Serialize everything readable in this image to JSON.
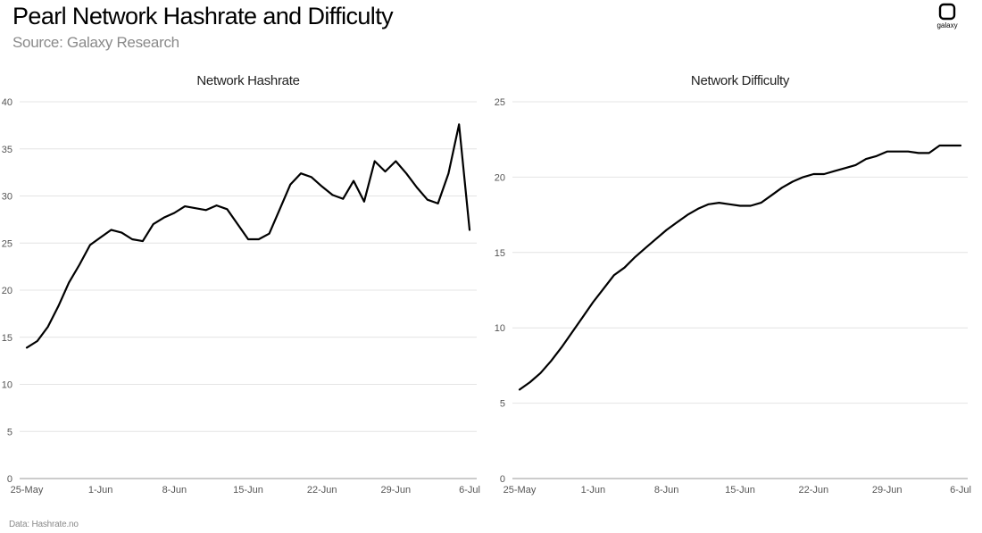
{
  "header": {
    "title": "Pearl Network Hashrate and Difficulty",
    "subtitle": "Source: Galaxy Research",
    "logo_text": "galaxy"
  },
  "footer": {
    "note": "Data: Hashrate.no"
  },
  "chart_data": [
    {
      "type": "line",
      "title": "Network Hashrate",
      "xlabel": "",
      "ylabel": "",
      "x_ticks": [
        "25-May",
        "1-Jun",
        "8-Jun",
        "15-Jun",
        "22-Jun",
        "29-Jun",
        "6-Jul"
      ],
      "y_ticks": [
        0,
        5,
        10,
        15,
        20,
        25,
        30,
        35,
        40
      ],
      "ylim": [
        0,
        40
      ],
      "x_range_days": [
        0,
        42
      ],
      "grid": "horizontal",
      "line_color": "#000000",
      "series": [
        {
          "x": [
            0,
            1,
            2,
            3,
            4,
            5,
            6,
            7,
            8,
            9,
            10,
            11,
            12,
            13,
            14,
            15,
            16,
            17,
            18,
            19,
            20,
            21,
            22,
            23,
            24,
            25,
            26,
            27,
            28,
            29,
            30,
            31,
            32,
            33,
            34,
            35,
            36,
            37,
            38,
            39,
            40,
            41
          ],
          "y": [
            13.9,
            14.6,
            16.1,
            18.3,
            20.8,
            22.7,
            24.8,
            25.6,
            26.4,
            26.1,
            25.4,
            25.2,
            27.0,
            27.7,
            28.2,
            28.9,
            28.7,
            28.5,
            29.0,
            28.6,
            27.0,
            25.4,
            25.4,
            26.0,
            28.6,
            31.2,
            32.4,
            32.0,
            31.0,
            30.1,
            29.7,
            31.6,
            29.4,
            33.7,
            32.6,
            33.7,
            32.4,
            30.9,
            29.6,
            29.2,
            32.4,
            37.6
          ]
        }
      ],
      "last_point": {
        "x": 42,
        "y": 26.4
      }
    },
    {
      "type": "line",
      "title": "Network Difficulty",
      "xlabel": "",
      "ylabel": "",
      "x_ticks": [
        "25-May",
        "1-Jun",
        "8-Jun",
        "15-Jun",
        "22-Jun",
        "29-Jun",
        "6-Jul"
      ],
      "y_ticks": [
        0,
        5,
        10,
        15,
        20,
        25
      ],
      "ylim": [
        0,
        25
      ],
      "x_range_days": [
        0,
        42
      ],
      "grid": "horizontal",
      "line_color": "#000000",
      "series": [
        {
          "x": [
            0,
            1,
            2,
            3,
            4,
            5,
            6,
            7,
            8,
            9,
            10,
            11,
            12,
            13,
            14,
            15,
            16,
            17,
            18,
            19,
            20,
            21,
            22,
            23,
            24,
            25,
            26,
            27,
            28,
            29,
            30,
            31,
            32,
            33,
            34,
            35,
            36,
            37,
            38,
            39,
            40,
            41,
            42
          ],
          "y": [
            5.9,
            6.4,
            7.0,
            7.8,
            8.7,
            9.7,
            10.7,
            11.7,
            12.6,
            13.5,
            14.0,
            14.7,
            15.3,
            15.9,
            16.5,
            17.0,
            17.5,
            17.9,
            18.2,
            18.3,
            18.2,
            18.1,
            18.1,
            18.3,
            18.8,
            19.3,
            19.7,
            20.0,
            20.2,
            20.2,
            20.4,
            20.6,
            20.8,
            21.2,
            21.4,
            21.7,
            21.7,
            21.7,
            21.6,
            21.6,
            22.1,
            22.1,
            22.1
          ]
        }
      ]
    }
  ]
}
